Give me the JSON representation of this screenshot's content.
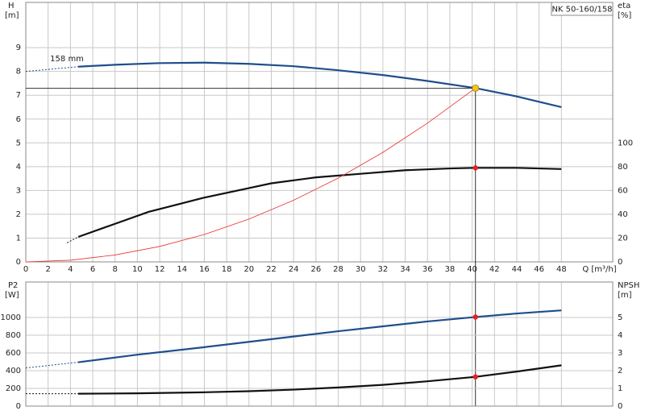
{
  "chart_data": [
    {
      "type": "line",
      "title": "NK 50-160/158",
      "ylabel": "H",
      "yunit": "[m]",
      "y2label": "eta",
      "y2unit": "[%]",
      "xlabel": "Q [m³/h]",
      "xlim": [
        0,
        52.6
      ],
      "xticks": [
        0,
        2,
        4,
        6,
        8,
        10,
        12,
        14,
        16,
        18,
        20,
        22,
        24,
        26,
        28,
        30,
        32,
        34,
        36,
        38,
        40,
        42,
        44,
        46,
        48
      ],
      "ylim": [
        0,
        10.9
      ],
      "yticks": [
        0,
        1,
        2,
        3,
        4,
        5,
        6,
        7,
        8,
        9
      ],
      "y2lim": [
        0,
        218
      ],
      "y2ticks": [
        0,
        20,
        40,
        60,
        80,
        100
      ],
      "grid": true,
      "series": [
        {
          "color": "#1f4e8c",
          "dash": true,
          "x": [
            0,
            4.7
          ],
          "values": [
            8.0,
            8.2
          ]
        },
        {
          "name": "158 mm",
          "color": "#1f4e8c",
          "x": [
            4.7,
            8,
            12,
            16,
            20,
            24,
            28,
            32,
            36,
            40.3,
            44,
            48
          ],
          "values": [
            8.2,
            8.28,
            8.35,
            8.37,
            8.32,
            8.22,
            8.05,
            7.85,
            7.6,
            7.3,
            6.95,
            6.5
          ]
        },
        {
          "color": "#111111",
          "dash": true,
          "axis": "y2",
          "x": [
            3.7,
            4.7
          ],
          "values": [
            16,
            21
          ]
        },
        {
          "color": "#111111",
          "axis": "y2",
          "x": [
            4.7,
            8,
            11,
            16,
            20,
            22,
            26,
            30,
            34,
            38,
            40.3,
            44,
            48
          ],
          "values": [
            21,
            32,
            42,
            54,
            62,
            66,
            71,
            74,
            77,
            78.5,
            79,
            79,
            78
          ]
        },
        {
          "color": "#e83030",
          "thin": true,
          "x": [
            0,
            4,
            8,
            12,
            16,
            20,
            24,
            28,
            32,
            36,
            40.3
          ],
          "values": [
            0,
            0.07,
            0.29,
            0.65,
            1.15,
            1.8,
            2.59,
            3.52,
            4.6,
            5.83,
            7.3
          ]
        }
      ],
      "points": [
        {
          "x": 40.3,
          "y": 7.3,
          "color": "#f5c518",
          "duty": true
        },
        {
          "x": 40.3,
          "y": 79,
          "axis": "y2",
          "color": "#e82020"
        }
      ]
    },
    {
      "type": "line",
      "ylabel": "P2",
      "yunit": "[W]",
      "y2label": "NPSH",
      "y2unit": "[m]",
      "xlim": [
        0,
        52.6
      ],
      "ylim": [
        0,
        1400
      ],
      "yticks": [
        0,
        200,
        400,
        600,
        800,
        1000
      ],
      "y2lim": [
        0,
        7
      ],
      "y2ticks": [
        0,
        1,
        2,
        3,
        4,
        5
      ],
      "grid": true,
      "series": [
        {
          "color": "#1f4e8c",
          "dash": true,
          "x": [
            0,
            4.7
          ],
          "values": [
            430,
            495
          ]
        },
        {
          "color": "#1f4e8c",
          "x": [
            4.7,
            10,
            16,
            20,
            24,
            28,
            32,
            36,
            40.3,
            44,
            48
          ],
          "values": [
            495,
            580,
            665,
            725,
            785,
            845,
            900,
            955,
            1005,
            1045,
            1080
          ]
        },
        {
          "color": "#111111",
          "dash": true,
          "axis": "y2",
          "x": [
            0,
            4.7
          ],
          "values": [
            0.7,
            0.7
          ]
        },
        {
          "color": "#111111",
          "axis": "y2",
          "x": [
            4.7,
            10,
            16,
            20,
            24,
            28,
            32,
            36,
            40.3,
            44,
            48
          ],
          "values": [
            0.7,
            0.72,
            0.78,
            0.84,
            0.93,
            1.05,
            1.2,
            1.4,
            1.65,
            1.95,
            2.3
          ]
        }
      ],
      "points": [
        {
          "x": 40.3,
          "y": 1005,
          "color": "#e82020"
        },
        {
          "x": 40.3,
          "y": 1.65,
          "axis": "y2",
          "color": "#e82020"
        }
      ]
    }
  ]
}
